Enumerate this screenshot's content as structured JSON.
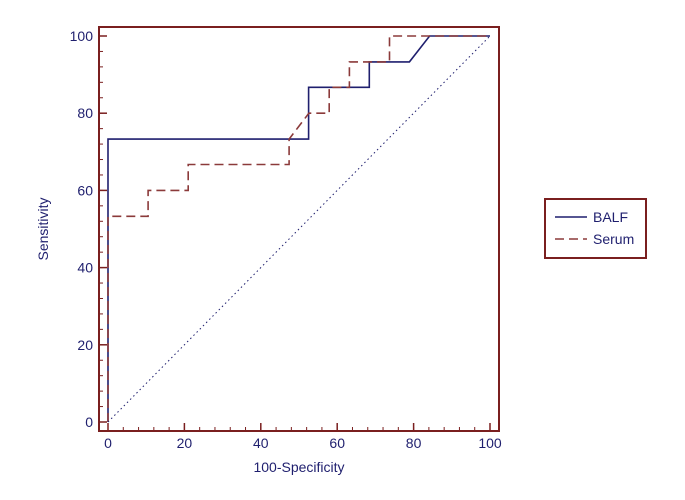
{
  "chart_data": {
    "type": "line",
    "xlabel": "100-Specificity",
    "ylabel": "Sensitivity",
    "xlim": [
      0,
      100
    ],
    "ylim": [
      0,
      100
    ],
    "xticks": [
      "0",
      "20",
      "40",
      "60",
      "80",
      "100"
    ],
    "yticks": [
      "0",
      "20",
      "40",
      "60",
      "80",
      "100"
    ],
    "legend_position": "right",
    "series": [
      {
        "name": "BALF",
        "color": "#1f1f6e",
        "style": "solid",
        "x": [
          0,
          0,
          52.5,
          52.5,
          68.4,
          68.4,
          78.9,
          84.2,
          100
        ],
        "y": [
          0,
          73.3,
          73.3,
          86.7,
          86.7,
          93.3,
          93.3,
          100,
          100
        ]
      },
      {
        "name": "Serum",
        "color": "#8b3a3a",
        "style": "dashed",
        "x": [
          0,
          0,
          10.5,
          10.5,
          21,
          21,
          47.4,
          47.4,
          52.6,
          57.9,
          57.9,
          63.2,
          63.2,
          73.7,
          73.7,
          100
        ],
        "y": [
          0,
          53.3,
          53.3,
          60,
          60,
          66.7,
          66.7,
          73.3,
          80,
          80,
          86.7,
          86.7,
          93.3,
          93.3,
          100,
          100
        ]
      },
      {
        "name": "",
        "color": "#1f1f6e",
        "style": "dotted",
        "x": [
          0,
          100
        ],
        "y": [
          0,
          100
        ]
      }
    ]
  }
}
